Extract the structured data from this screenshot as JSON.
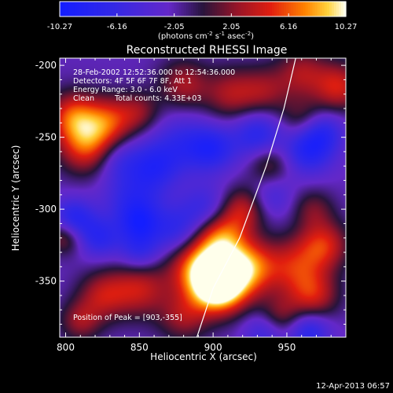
{
  "chart_data": {
    "type": "heatmap",
    "title": "Reconstructed RHESSI Image",
    "xlabel": "Heliocentric X (arcsec)",
    "ylabel": "Heliocentric Y (arcsec)",
    "xlim": [
      796,
      990
    ],
    "ylim": [
      -389,
      -195
    ],
    "x_ticks": [
      800,
      850,
      900,
      950
    ],
    "y_ticks": [
      -200,
      -250,
      -300,
      -350
    ],
    "colorbar": {
      "ticks": [
        "-10.27",
        "-6.16",
        "-2.05",
        "2.05",
        "6.16",
        "10.27"
      ],
      "label_parts": [
        "(photons cm",
        "-2",
        " s",
        "-1",
        " asec",
        "-2",
        ")"
      ],
      "min": -10.27,
      "max": 10.27
    },
    "annotations": [
      "28-Feb-2002 12:52:36.000 to 12:54:36.000",
      "Detectors: 4F 5F 6F 7F 8F, Att 1",
      "Energy Range: 3.0 - 6.0 keV",
      "Clean",
      "Total counts: 4.33E+03"
    ],
    "peak_text": "Position of Peak = [903,-355]",
    "peak": [
      903,
      -355
    ],
    "limb_curve": [
      [
        889,
        -389
      ],
      [
        900,
        -355
      ],
      [
        918,
        -320
      ],
      [
        936,
        -270
      ],
      [
        948,
        -230
      ],
      [
        956,
        -195
      ]
    ],
    "sources": [
      {
        "x": 903,
        "y": -355,
        "amp": 10.27,
        "r": 12
      },
      {
        "x": 908,
        "y": -345,
        "amp": 8.5,
        "r": 16
      },
      {
        "x": 890,
        "y": -340,
        "amp": 7.5,
        "r": 14
      },
      {
        "x": 905,
        "y": -318,
        "amp": 7.2,
        "r": 12
      },
      {
        "x": 920,
        "y": -300,
        "amp": 5.6,
        "r": 11
      },
      {
        "x": 925,
        "y": -340,
        "amp": 6.2,
        "r": 13
      },
      {
        "x": 955,
        "y": -340,
        "amp": 5.8,
        "r": 14
      },
      {
        "x": 975,
        "y": -325,
        "amp": 6.6,
        "r": 12
      },
      {
        "x": 968,
        "y": -360,
        "amp": 6.0,
        "r": 12
      },
      {
        "x": 945,
        "y": -375,
        "amp": 4.2,
        "r": 10
      },
      {
        "x": 880,
        "y": -375,
        "amp": 4.6,
        "r": 12
      },
      {
        "x": 850,
        "y": -355,
        "amp": 6.0,
        "r": 14
      },
      {
        "x": 825,
        "y": -360,
        "amp": 5.2,
        "r": 12
      },
      {
        "x": 810,
        "y": -378,
        "amp": 4.5,
        "r": 10
      },
      {
        "x": 815,
        "y": -255,
        "amp": 8.4,
        "r": 14
      },
      {
        "x": 805,
        "y": -235,
        "amp": 7.0,
        "r": 12
      },
      {
        "x": 830,
        "y": -238,
        "amp": 6.0,
        "r": 12
      },
      {
        "x": 850,
        "y": -232,
        "amp": 3.8,
        "r": 10
      },
      {
        "x": 880,
        "y": -213,
        "amp": 5.0,
        "r": 12
      },
      {
        "x": 912,
        "y": -220,
        "amp": 5.0,
        "r": 13
      },
      {
        "x": 935,
        "y": -218,
        "amp": 4.2,
        "r": 12
      },
      {
        "x": 960,
        "y": -205,
        "amp": 4.8,
        "r": 12
      },
      {
        "x": 985,
        "y": -215,
        "amp": 6.5,
        "r": 12
      },
      {
        "x": 800,
        "y": -318,
        "amp": 6.0,
        "r": 9
      },
      {
        "x": 968,
        "y": -300,
        "amp": 3.5,
        "r": 10
      },
      {
        "x": 960,
        "y": -238,
        "amp": 3.6,
        "r": 11
      },
      {
        "x": 938,
        "y": -268,
        "amp": 4.0,
        "r": 10
      },
      {
        "x": 846,
        "y": -293,
        "amp": -4.5,
        "r": 14
      },
      {
        "x": 860,
        "y": -270,
        "amp": -5.0,
        "r": 12
      },
      {
        "x": 880,
        "y": -255,
        "amp": -4.2,
        "r": 14
      },
      {
        "x": 900,
        "y": -258,
        "amp": -5.2,
        "r": 11
      },
      {
        "x": 835,
        "y": -265,
        "amp": -3.8,
        "r": 11
      },
      {
        "x": 895,
        "y": -300,
        "amp": -4.2,
        "r": 12
      },
      {
        "x": 875,
        "y": -315,
        "amp": -4.5,
        "r": 12
      },
      {
        "x": 930,
        "y": -248,
        "amp": -5.5,
        "r": 12
      },
      {
        "x": 965,
        "y": -258,
        "amp": -6.5,
        "r": 12
      },
      {
        "x": 975,
        "y": -245,
        "amp": -4.0,
        "r": 10
      },
      {
        "x": 805,
        "y": -308,
        "amp": -7.0,
        "r": 10
      },
      {
        "x": 823,
        "y": -320,
        "amp": -4.8,
        "r": 10
      },
      {
        "x": 850,
        "y": -330,
        "amp": -4.4,
        "r": 10
      },
      {
        "x": 850,
        "y": -310,
        "amp": -5.0,
        "r": 10
      },
      {
        "x": 940,
        "y": -292,
        "amp": -3.0,
        "r": 10
      },
      {
        "x": 935,
        "y": -385,
        "amp": -4.0,
        "r": 10
      },
      {
        "x": 965,
        "y": -385,
        "amp": -5.5,
        "r": 10
      }
    ]
  },
  "footer": {
    "timestamp": "12-Apr-2013 06:57"
  }
}
